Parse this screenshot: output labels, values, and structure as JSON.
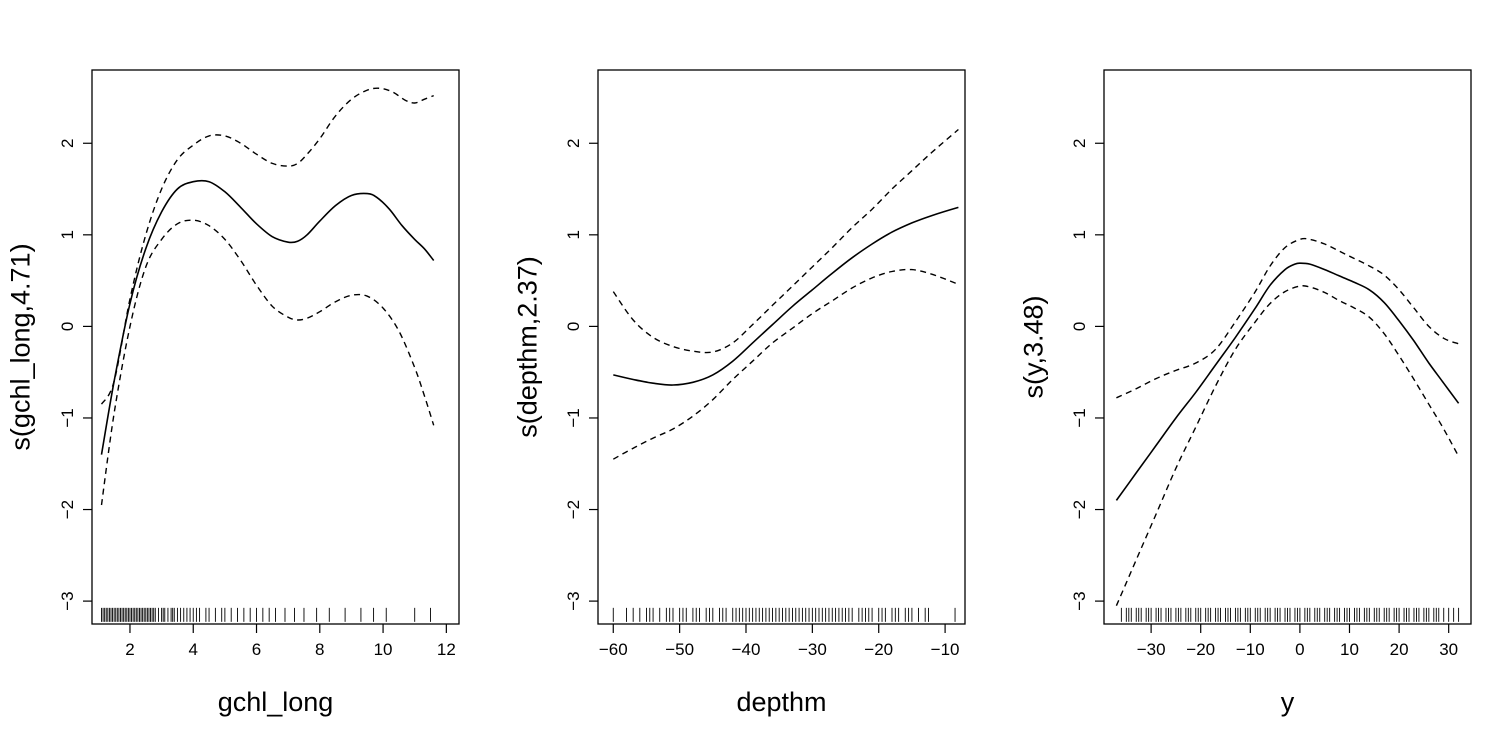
{
  "chart_data": [
    {
      "type": "line",
      "xlabel": "gchl_long",
      "ylabel": "s(gchl_long,4.71)",
      "xlim": [
        0.8,
        12.4
      ],
      "ylim": [
        -3.25,
        2.8
      ],
      "xticks": [
        2,
        4,
        6,
        8,
        10,
        12
      ],
      "yticks": [
        -3,
        -2,
        -1,
        0,
        1,
        2
      ],
      "grid": false,
      "fit": {
        "x": [
          1.1,
          1.5,
          2.0,
          2.5,
          3.0,
          3.5,
          4.0,
          4.5,
          5.0,
          5.5,
          6.0,
          6.5,
          7.0,
          7.3,
          7.6,
          8.0,
          8.5,
          9.0,
          9.5,
          9.8,
          10.2,
          10.6,
          11.0,
          11.3,
          11.6
        ],
        "y": [
          -1.4,
          -0.6,
          0.25,
          0.85,
          1.25,
          1.5,
          1.58,
          1.58,
          1.47,
          1.3,
          1.12,
          0.98,
          0.92,
          0.93,
          1.0,
          1.15,
          1.32,
          1.43,
          1.45,
          1.41,
          1.28,
          1.1,
          0.95,
          0.85,
          0.72
        ]
      },
      "upper": {
        "x": [
          1.1,
          1.5,
          2.0,
          2.5,
          3.0,
          3.5,
          4.0,
          4.5,
          5.0,
          5.5,
          6.0,
          6.5,
          7.0,
          7.3,
          7.6,
          8.0,
          8.5,
          9.0,
          9.5,
          9.9,
          10.3,
          10.7,
          11.0,
          11.3,
          11.6
        ],
        "y": [
          -0.85,
          -0.6,
          0.3,
          1.0,
          1.5,
          1.82,
          1.98,
          2.08,
          2.08,
          2.0,
          1.88,
          1.78,
          1.75,
          1.78,
          1.88,
          2.05,
          2.3,
          2.48,
          2.58,
          2.6,
          2.56,
          2.47,
          2.44,
          2.48,
          2.52
        ]
      },
      "lower": {
        "x": [
          1.1,
          1.5,
          2.0,
          2.5,
          3.0,
          3.5,
          4.0,
          4.5,
          5.0,
          5.5,
          6.0,
          6.5,
          7.0,
          7.3,
          7.6,
          8.0,
          8.5,
          9.0,
          9.5,
          10.0,
          10.5,
          11.0,
          11.3,
          11.6
        ],
        "y": [
          -1.95,
          -0.95,
          0.0,
          0.65,
          0.95,
          1.12,
          1.16,
          1.1,
          0.95,
          0.72,
          0.45,
          0.22,
          0.1,
          0.07,
          0.09,
          0.16,
          0.27,
          0.34,
          0.33,
          0.2,
          -0.05,
          -0.45,
          -0.75,
          -1.08
        ]
      },
      "rug": [
        1.1,
        1.15,
        1.2,
        1.25,
        1.3,
        1.35,
        1.4,
        1.45,
        1.5,
        1.55,
        1.6,
        1.65,
        1.7,
        1.75,
        1.8,
        1.85,
        1.9,
        1.95,
        2.0,
        2.05,
        2.1,
        2.15,
        2.2,
        2.25,
        2.3,
        2.35,
        2.4,
        2.45,
        2.5,
        2.55,
        2.6,
        2.65,
        2.7,
        2.75,
        2.8,
        2.9,
        3.0,
        3.05,
        3.1,
        3.2,
        3.3,
        3.35,
        3.4,
        3.5,
        3.6,
        3.7,
        3.8,
        3.9,
        4.0,
        4.1,
        4.2,
        4.4,
        4.5,
        4.7,
        4.9,
        5.0,
        5.2,
        5.4,
        5.6,
        5.8,
        6.0,
        6.2,
        6.4,
        6.6,
        6.9,
        7.2,
        7.5,
        7.9,
        8.3,
        8.8,
        9.3,
        9.7,
        10.1,
        11.0,
        11.5
      ]
    },
    {
      "type": "line",
      "xlabel": "depthm",
      "ylabel": "s(depthm,2.37)",
      "xlim": [
        -62.3,
        -7.0
      ],
      "ylim": [
        -3.25,
        2.8
      ],
      "xticks": [
        -60,
        -50,
        -40,
        -30,
        -20,
        -10
      ],
      "yticks": [
        -3,
        -2,
        -1,
        0,
        1,
        2
      ],
      "grid": false,
      "fit": {
        "x": [
          -60,
          -57,
          -54,
          -51,
          -48,
          -45,
          -42,
          -39,
          -36,
          -33,
          -30,
          -27,
          -24,
          -21,
          -18,
          -15,
          -12,
          -8
        ],
        "y": [
          -0.53,
          -0.58,
          -0.62,
          -0.64,
          -0.61,
          -0.53,
          -0.38,
          -0.18,
          0.02,
          0.22,
          0.4,
          0.58,
          0.75,
          0.9,
          1.03,
          1.13,
          1.21,
          1.3
        ]
      },
      "upper": {
        "x": [
          -60,
          -57,
          -54,
          -51,
          -48,
          -45,
          -42,
          -39,
          -36,
          -33,
          -30,
          -27,
          -24,
          -21,
          -18,
          -15,
          -12,
          -8
        ],
        "y": [
          0.38,
          0.07,
          -0.12,
          -0.22,
          -0.27,
          -0.28,
          -0.18,
          0.02,
          0.23,
          0.44,
          0.65,
          0.86,
          1.08,
          1.28,
          1.5,
          1.7,
          1.9,
          2.15
        ]
      },
      "lower": {
        "x": [
          -60,
          -57,
          -54,
          -51,
          -48,
          -45,
          -42,
          -39,
          -36,
          -33,
          -30,
          -27,
          -24,
          -21,
          -18,
          -15,
          -12,
          -8
        ],
        "y": [
          -1.45,
          -1.33,
          -1.22,
          -1.12,
          -0.98,
          -0.8,
          -0.58,
          -0.38,
          -0.18,
          -0.02,
          0.14,
          0.28,
          0.42,
          0.53,
          0.6,
          0.62,
          0.57,
          0.46
        ]
      },
      "rug": [
        -60,
        -58,
        -57,
        -56,
        -55,
        -54.5,
        -54,
        -53,
        -52,
        -51.5,
        -51,
        -50,
        -49.5,
        -49,
        -48,
        -47.5,
        -47,
        -46,
        -45.5,
        -45,
        -44,
        -43.5,
        -43,
        -42,
        -41.5,
        -41,
        -40.5,
        -40,
        -39.5,
        -39,
        -38.5,
        -38,
        -37.5,
        -37,
        -36.5,
        -36,
        -35.5,
        -35,
        -34.5,
        -34,
        -33.5,
        -33,
        -32.5,
        -32,
        -31.5,
        -31,
        -30.5,
        -30,
        -29.5,
        -29,
        -28.5,
        -28,
        -27.5,
        -27,
        -26.5,
        -26,
        -25.5,
        -25,
        -24.5,
        -24,
        -23,
        -22.5,
        -22,
        -21.5,
        -21,
        -20,
        -19.5,
        -19,
        -18,
        -17.5,
        -17,
        -16,
        -15.5,
        -15,
        -14,
        -13,
        -12.5,
        -8.5
      ]
    },
    {
      "type": "line",
      "xlabel": "y",
      "ylabel": "s(y,3.48)",
      "xlim": [
        -39.5,
        34.5
      ],
      "ylim": [
        -3.25,
        2.8
      ],
      "xticks": [
        -30,
        -20,
        -10,
        0,
        10,
        20,
        30
      ],
      "yticks": [
        -3,
        -2,
        -1,
        0,
        1,
        2
      ],
      "grid": false,
      "fit": {
        "x": [
          -37,
          -33,
          -29,
          -25,
          -21,
          -17,
          -13,
          -9,
          -6,
          -3,
          -1,
          0,
          2,
          5,
          8,
          11,
          14,
          17,
          20,
          23,
          26,
          29,
          32
        ],
        "y": [
          -1.9,
          -1.6,
          -1.3,
          -1.0,
          -0.72,
          -0.42,
          -0.12,
          0.2,
          0.45,
          0.62,
          0.68,
          0.69,
          0.68,
          0.62,
          0.55,
          0.48,
          0.4,
          0.26,
          0.06,
          -0.16,
          -0.4,
          -0.62,
          -0.84
        ]
      },
      "upper": {
        "x": [
          -37,
          -33,
          -29,
          -25,
          -21,
          -17,
          -13,
          -9,
          -6,
          -3,
          0,
          2,
          5,
          8,
          11,
          14,
          17,
          20,
          23,
          26,
          29,
          32
        ],
        "y": [
          -0.78,
          -0.68,
          -0.57,
          -0.48,
          -0.4,
          -0.25,
          0.05,
          0.38,
          0.66,
          0.86,
          0.95,
          0.95,
          0.9,
          0.82,
          0.74,
          0.66,
          0.56,
          0.4,
          0.2,
          0.0,
          -0.13,
          -0.19
        ]
      },
      "lower": {
        "x": [
          -37,
          -33,
          -29,
          -25,
          -21,
          -17,
          -13,
          -9,
          -6,
          -3,
          0,
          2,
          5,
          8,
          11,
          14,
          17,
          20,
          23,
          26,
          29,
          32
        ],
        "y": [
          -3.05,
          -2.55,
          -2.05,
          -1.55,
          -1.1,
          -0.65,
          -0.25,
          0.05,
          0.25,
          0.38,
          0.44,
          0.43,
          0.37,
          0.28,
          0.2,
          0.1,
          -0.08,
          -0.32,
          -0.58,
          -0.85,
          -1.12,
          -1.42
        ]
      },
      "rug": [
        -36,
        -35,
        -34.5,
        -34,
        -33,
        -32.5,
        -32,
        -31,
        -30.5,
        -30,
        -29,
        -28.5,
        -28,
        -27,
        -26.5,
        -26,
        -25,
        -24.5,
        -24,
        -23,
        -22.5,
        -22,
        -21,
        -20.5,
        -20,
        -19,
        -18.5,
        -18,
        -17,
        -16.5,
        -16,
        -15,
        -14.5,
        -14,
        -13,
        -12.5,
        -12,
        -11,
        -10.5,
        -10,
        -9,
        -8.5,
        -8,
        -7,
        -6.5,
        -6,
        -5,
        -4.5,
        -4,
        -3,
        -2.5,
        -2,
        -1,
        -0.5,
        0,
        1,
        1.5,
        2,
        3,
        3.5,
        4,
        5,
        5.5,
        6,
        7,
        7.5,
        8,
        9,
        9.5,
        10,
        11,
        11.5,
        12,
        13,
        13.5,
        14,
        15,
        15.5,
        16,
        17,
        17.5,
        18,
        19,
        19.5,
        20,
        21,
        21.5,
        22,
        23,
        23.5,
        24,
        25,
        25.5,
        26,
        27,
        27.5,
        28,
        29,
        30,
        31,
        32
      ]
    }
  ]
}
